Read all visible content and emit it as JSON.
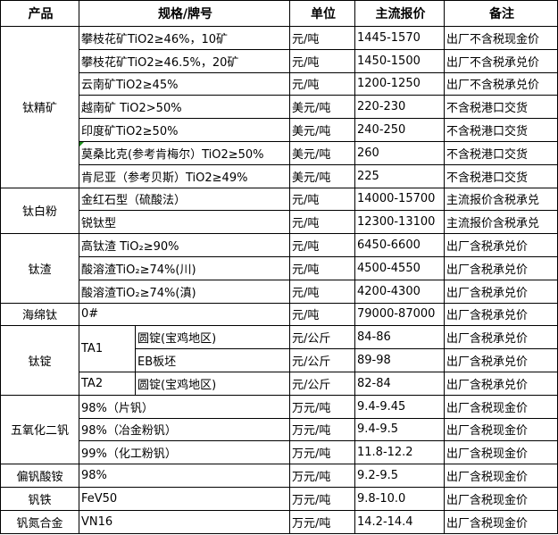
{
  "headers": [
    "产品",
    "规格/牌号",
    "单位",
    "主流报价",
    "备注"
  ],
  "groups": [
    {
      "product": "钛精矿",
      "rows": [
        {
          "spec": "攀枝花矿TiO2≥46%，10矿",
          "unit": "元/吨",
          "price": "1445-1570",
          "note": "出厂不含税现金价"
        },
        {
          "spec": "攀枝花矿TiO2≥46.5%，20矿",
          "unit": "元/吨",
          "price": "1450-1500",
          "note": "出厂不含税承兑价"
        },
        {
          "spec": "云南矿TiO2≥45%",
          "unit": "元/吨",
          "price": "1200-1250",
          "note": "出厂不含税承兑价"
        },
        {
          "spec": "越南矿 TiO2>50%",
          "unit": "美元/吨",
          "price": "220-230",
          "note": "不含税港口交货"
        },
        {
          "spec": "印度矿TiO2≥50%",
          "unit": "美元/吨",
          "price": "240-250",
          "note": "不含税港口交货"
        },
        {
          "spec": "莫桑比克(参考肯梅尔）TiO2≥50%",
          "unit": "美元/吨",
          "price": "260",
          "note": "不含税港口交货",
          "marker": true
        },
        {
          "spec": "肯尼亚（参考贝斯）TiO2≥49%",
          "unit": "美元/吨",
          "price": "225",
          "note": "不含税港口交货"
        }
      ]
    },
    {
      "product": "钛白粉",
      "rows": [
        {
          "spec": "金红石型（硫酸法）",
          "unit": "元/吨",
          "price": "14000-15700",
          "note": "主流报价含税承兑"
        },
        {
          "spec": "锐钛型",
          "unit": "元/吨",
          "price": "12300-13100",
          "note": "主流报价含税承兑"
        }
      ]
    },
    {
      "product": "钛渣",
      "rows": [
        {
          "spec": "高钛渣 TiO₂≥90%",
          "unit": "元/吨",
          "price": "6450-6600",
          "note": "出厂含税承兑价"
        },
        {
          "spec": "酸溶渣TiO₂≥74%(川)",
          "unit": "元/吨",
          "price": "4500-4550",
          "note": "出厂含税承兑价"
        },
        {
          "spec": "酸溶渣TiO₂≥74%(滇)",
          "unit": "元/吨",
          "price": "4200-4300",
          "note": "出厂含税承兑价"
        }
      ]
    },
    {
      "product": "海绵钛",
      "rows": [
        {
          "spec": "0#",
          "unit": "元/吨",
          "price": "79000-87000",
          "note": "出厂含税承兑价"
        }
      ]
    },
    {
      "product": "钛锭",
      "grades": [
        {
          "grade": "TA1",
          "rows": [
            {
              "spec": "圆锭(宝鸡地区)",
              "unit": "元/公斤",
              "price": "84-86",
              "note": "出厂含税承兑价"
            },
            {
              "spec": "EB板坯",
              "unit": "元/公斤",
              "price": "89-98",
              "note": "出厂含税承兑价"
            }
          ]
        },
        {
          "grade": "TA2",
          "rows": [
            {
              "spec": "圆锭(宝鸡地区)",
              "unit": "元/公斤",
              "price": "82-84",
              "note": "出厂含税承兑价"
            }
          ]
        }
      ]
    },
    {
      "product": "五氧化二钒",
      "rows": [
        {
          "spec": "98%（片钒）",
          "unit": "万元/吨",
          "price": "9.4-9.45",
          "note": "出厂含税现金价"
        },
        {
          "spec": "98%（冶金粉钒）",
          "unit": "万元/吨",
          "price": "9.4-9.5",
          "note": "出厂含税现金价"
        },
        {
          "spec": "99%（化工粉钒）",
          "unit": "万元/吨",
          "price": "11.8-12.2",
          "note": "出厂含税现金价"
        }
      ]
    },
    {
      "product": "偏钒酸铵",
      "rows": [
        {
          "spec": "98%",
          "unit": "万元/吨",
          "price": "9.2-9.5",
          "note": "出厂含税现金价"
        }
      ]
    },
    {
      "product": "钒铁",
      "rows": [
        {
          "spec": "FeV50",
          "unit": "万元/吨",
          "price": "9.8-10.0",
          "note": "出厂含税现金价"
        }
      ]
    },
    {
      "product": "钒氮合金",
      "rows": [
        {
          "spec": "VN16",
          "unit": "万元/吨",
          "price": "14.2-14.4",
          "note": "出厂含税现金价"
        }
      ]
    }
  ]
}
